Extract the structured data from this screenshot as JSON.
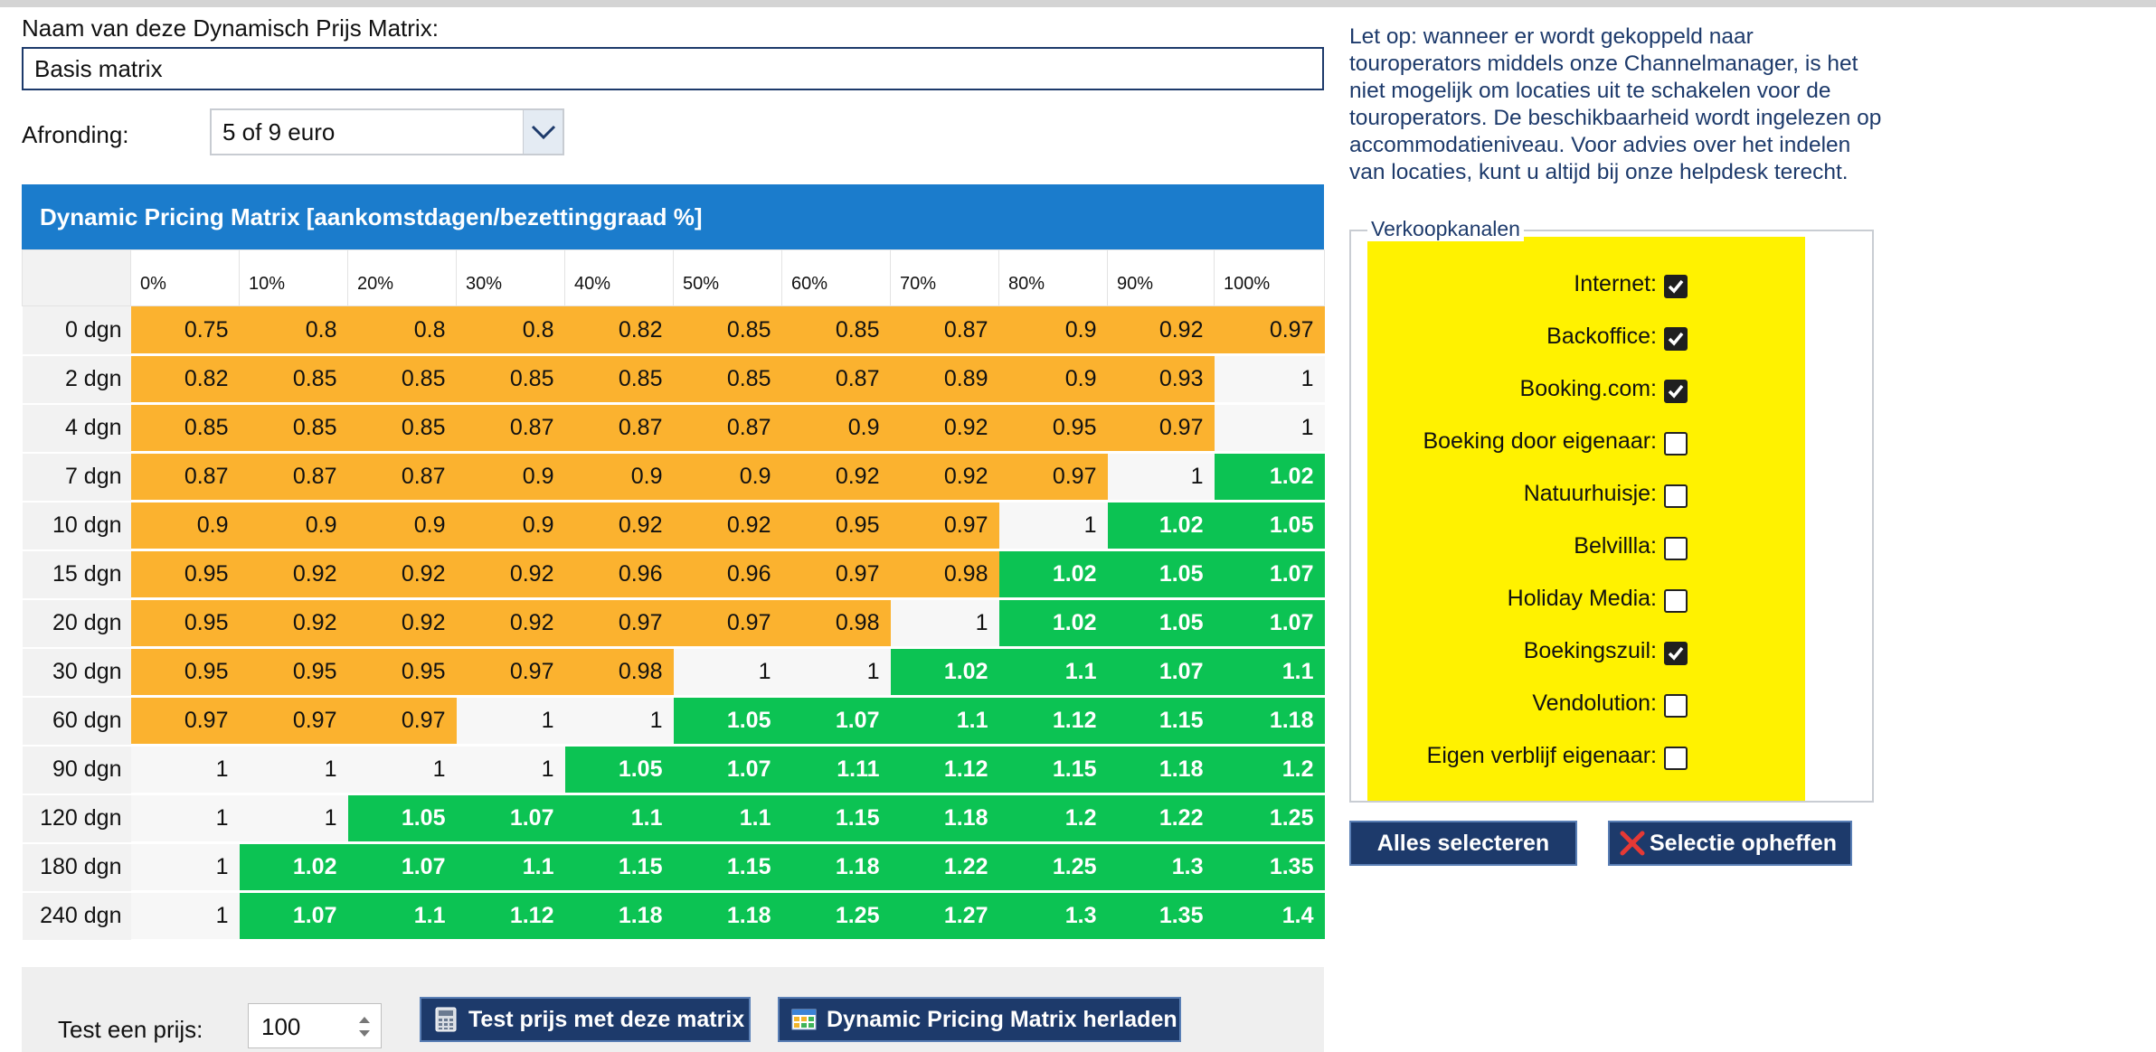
{
  "form": {
    "name_label": "Naam van deze Dynamisch Prijs Matrix:",
    "name_value": "Basis matrix",
    "rounding_label": "Afronding:",
    "rounding_value": "5 of 9 euro"
  },
  "matrix": {
    "title": "Dynamic Pricing Matrix [aankomstdagen/bezettinggraad %]",
    "columns": [
      "0%",
      "10%",
      "20%",
      "30%",
      "40%",
      "50%",
      "60%",
      "70%",
      "80%",
      "90%",
      "100%"
    ],
    "rows": [
      {
        "label": "0 dgn",
        "values": [
          "0.75",
          "0.8",
          "0.8",
          "0.8",
          "0.82",
          "0.85",
          "0.85",
          "0.87",
          "0.9",
          "0.92",
          "0.97"
        ]
      },
      {
        "label": "2 dgn",
        "values": [
          "0.82",
          "0.85",
          "0.85",
          "0.85",
          "0.85",
          "0.85",
          "0.87",
          "0.89",
          "0.9",
          "0.93",
          "1"
        ]
      },
      {
        "label": "4 dgn",
        "values": [
          "0.85",
          "0.85",
          "0.85",
          "0.87",
          "0.87",
          "0.87",
          "0.9",
          "0.92",
          "0.95",
          "0.97",
          "1"
        ]
      },
      {
        "label": "7 dgn",
        "values": [
          "0.87",
          "0.87",
          "0.87",
          "0.9",
          "0.9",
          "0.9",
          "0.92",
          "0.92",
          "0.97",
          "1",
          "1.02"
        ]
      },
      {
        "label": "10 dgn",
        "values": [
          "0.9",
          "0.9",
          "0.9",
          "0.9",
          "0.92",
          "0.92",
          "0.95",
          "0.97",
          "1",
          "1.02",
          "1.05"
        ]
      },
      {
        "label": "15 dgn",
        "values": [
          "0.95",
          "0.92",
          "0.92",
          "0.92",
          "0.96",
          "0.96",
          "0.97",
          "0.98",
          "1.02",
          "1.05",
          "1.07"
        ]
      },
      {
        "label": "20 dgn",
        "values": [
          "0.95",
          "0.92",
          "0.92",
          "0.92",
          "0.97",
          "0.97",
          "0.98",
          "1",
          "1.02",
          "1.05",
          "1.07"
        ]
      },
      {
        "label": "30 dgn",
        "values": [
          "0.95",
          "0.95",
          "0.95",
          "0.97",
          "0.98",
          "1",
          "1",
          "1.02",
          "1.1",
          "1.07",
          "1.1"
        ]
      },
      {
        "label": "60 dgn",
        "values": [
          "0.97",
          "0.97",
          "0.97",
          "1",
          "1",
          "1.05",
          "1.07",
          "1.1",
          "1.12",
          "1.15",
          "1.18"
        ]
      },
      {
        "label": "90 dgn",
        "values": [
          "1",
          "1",
          "1",
          "1",
          "1.05",
          "1.07",
          "1.11",
          "1.12",
          "1.15",
          "1.18",
          "1.2"
        ]
      },
      {
        "label": "120 dgn",
        "values": [
          "1",
          "1",
          "1.05",
          "1.07",
          "1.1",
          "1.1",
          "1.15",
          "1.18",
          "1.2",
          "1.22",
          "1.25"
        ]
      },
      {
        "label": "180 dgn",
        "values": [
          "1",
          "1.02",
          "1.07",
          "1.1",
          "1.15",
          "1.15",
          "1.18",
          "1.22",
          "1.25",
          "1.3",
          "1.35"
        ]
      },
      {
        "label": "240 dgn",
        "values": [
          "1",
          "1.07",
          "1.1",
          "1.12",
          "1.18",
          "1.18",
          "1.25",
          "1.27",
          "1.3",
          "1.35",
          "1.4"
        ]
      }
    ],
    "colors": {
      "below": "#fbb22f",
      "neutral": "#f7f7f7",
      "above": "#0cc353",
      "header": "#1b7ccc"
    }
  },
  "test": {
    "label": "Test een prijs:",
    "value": "100",
    "test_button": "Test prijs met deze matrix",
    "reload_button": "Dynamic Pricing Matrix herladen"
  },
  "notice": "Let op: wanneer er wordt gekoppeld naar touroperators middels onze Channelmanager, is het niet mogelijk om locaties uit te schakelen voor de touroperators. De beschikbaarheid wordt ingelezen op accommodatieniveau. Voor advies over het indelen van locaties, kunt u altijd bij onze helpdesk terecht.",
  "channels": {
    "legend": "Verkoopkanalen",
    "items": [
      {
        "label": "Internet:",
        "checked": true
      },
      {
        "label": "Backoffice:",
        "checked": true
      },
      {
        "label": "Booking.com:",
        "checked": true
      },
      {
        "label": "Boeking door eigenaar:",
        "checked": false
      },
      {
        "label": "Natuurhuisje:",
        "checked": false
      },
      {
        "label": "Belvillla:",
        "checked": false
      },
      {
        "label": "Holiday Media:",
        "checked": false
      },
      {
        "label": "Boekingszuil:",
        "checked": true
      },
      {
        "label": "Vendolution:",
        "checked": false
      },
      {
        "label": "Eigen verblijf eigenaar:",
        "checked": false
      }
    ],
    "select_all": "Alles selecteren",
    "clear_selection": "Selectie opheffen"
  }
}
